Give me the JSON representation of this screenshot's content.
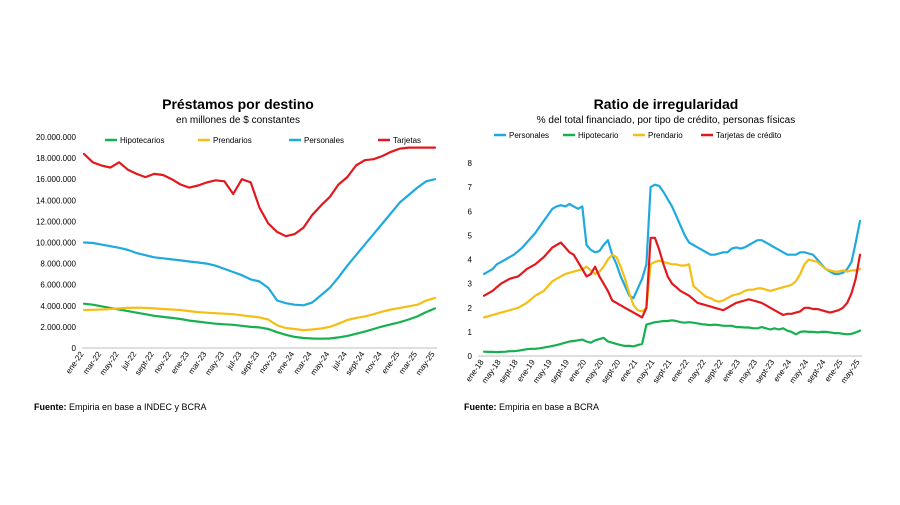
{
  "colors": {
    "green": "#17b050",
    "yellow": "#f5be14",
    "blue": "#1fa9df",
    "red": "#e3181d"
  },
  "chart_data": [
    {
      "type": "line",
      "title": "Préstamos por destino",
      "subtitle": "en millones de $ constantes",
      "source_label": "Fuente:",
      "source_text": " Empiria en base a INDEC y BCRA",
      "ylim": [
        0,
        20000000
      ],
      "ytick_values": [
        0,
        2000000,
        4000000,
        6000000,
        8000000,
        10000000,
        12000000,
        14000000,
        16000000,
        18000000,
        20000000
      ],
      "ytick_labels": [
        "0",
        "2.000.000",
        "4.000.000",
        "6.000.000",
        "8.000.000",
        "10.000.000",
        "12.000.000",
        "14.000.000",
        "16.000.000",
        "18.000.000",
        "20.000.000"
      ],
      "x_count": 41,
      "xtick_indices": [
        0,
        2,
        4,
        6,
        8,
        10,
        12,
        14,
        16,
        18,
        20,
        22,
        24,
        26,
        28,
        30,
        32,
        34,
        36,
        38,
        40
      ],
      "xtick_labels": [
        "ene-22",
        "mar-22",
        "may-22",
        "jul-22",
        "sept-22",
        "nov-22",
        "ene-23",
        "mar-23",
        "may-23",
        "jul-23",
        "sept-23",
        "nov-23",
        "ene-24",
        "mar-24",
        "may-24",
        "jul-24",
        "sept-24",
        "nov-24",
        "ene-25",
        "mar-25",
        "may-25"
      ],
      "series": [
        {
          "name": "Hipotecarios",
          "color": "#17b050",
          "values": [
            4200000,
            4100000,
            3950000,
            3800000,
            3650000,
            3500000,
            3350000,
            3200000,
            3050000,
            2950000,
            2850000,
            2750000,
            2600000,
            2500000,
            2400000,
            2300000,
            2250000,
            2200000,
            2100000,
            2000000,
            1950000,
            1800000,
            1500000,
            1250000,
            1050000,
            950000,
            900000,
            880000,
            900000,
            1000000,
            1150000,
            1350000,
            1550000,
            1800000,
            2050000,
            2250000,
            2450000,
            2700000,
            3000000,
            3400000,
            3750000
          ]
        },
        {
          "name": "Prendarios",
          "color": "#f5be14",
          "values": [
            3600000,
            3620000,
            3650000,
            3700000,
            3750000,
            3800000,
            3820000,
            3800000,
            3750000,
            3700000,
            3650000,
            3600000,
            3500000,
            3400000,
            3350000,
            3300000,
            3250000,
            3200000,
            3100000,
            3000000,
            2900000,
            2700000,
            2150000,
            1900000,
            1800000,
            1700000,
            1750000,
            1850000,
            2000000,
            2300000,
            2650000,
            2850000,
            3000000,
            3200000,
            3450000,
            3650000,
            3800000,
            3950000,
            4100000,
            4500000,
            4750000
          ]
        },
        {
          "name": "Personales",
          "color": "#1fa9df",
          "values": [
            10000000,
            9950000,
            9800000,
            9650000,
            9500000,
            9300000,
            9000000,
            8800000,
            8600000,
            8500000,
            8400000,
            8300000,
            8200000,
            8100000,
            8000000,
            7800000,
            7500000,
            7200000,
            6900000,
            6500000,
            6300000,
            5700000,
            4500000,
            4250000,
            4100000,
            4050000,
            4300000,
            5000000,
            5700000,
            6700000,
            7800000,
            8800000,
            9800000,
            10800000,
            11800000,
            12800000,
            13800000,
            14500000,
            15200000,
            15800000,
            16000000
          ]
        },
        {
          "name": "Tarjetas",
          "color": "#e3181d",
          "values": [
            18400000,
            17600000,
            17300000,
            17100000,
            17600000,
            16900000,
            16500000,
            16200000,
            16500000,
            16400000,
            16000000,
            15500000,
            15200000,
            15400000,
            15700000,
            15900000,
            15800000,
            14600000,
            16000000,
            15700000,
            13300000,
            11800000,
            11000000,
            10600000,
            10800000,
            11400000,
            12600000,
            13500000,
            14300000,
            15500000,
            16200000,
            17300000,
            17800000,
            17900000,
            18200000,
            18600000,
            18900000,
            19000000,
            19000000,
            19000000,
            19000000
          ]
        }
      ]
    },
    {
      "type": "line",
      "title": "Ratio de irregularidad",
      "subtitle": "% del total financiado, por tipo de crédito, personas físicas",
      "source_label": "Fuente:",
      "source_text": " Empiria en base a BCRA",
      "ylim": [
        0,
        8
      ],
      "ytick_values": [
        0,
        1,
        2,
        3,
        4,
        5,
        6,
        7,
        8
      ],
      "ytick_labels": [
        "0",
        "1",
        "2",
        "3",
        "4",
        "5",
        "6",
        "7",
        "8"
      ],
      "x_count": 89,
      "xtick_indices": [
        0,
        4,
        8,
        12,
        16,
        20,
        24,
        28,
        32,
        36,
        40,
        44,
        48,
        52,
        56,
        60,
        64,
        68,
        72,
        76,
        80,
        84,
        88
      ],
      "xtick_labels": [
        "ene-18",
        "may-18",
        "sept-18",
        "ene-19",
        "may-19",
        "sept-19",
        "ene-20",
        "may-20",
        "sept-20",
        "ene-21",
        "may-21",
        "sept-21",
        "ene-22",
        "may-22",
        "sept-22",
        "ene-23",
        "may-23",
        "sept-23",
        "ene-24",
        "may-24",
        "sept-24",
        "ene-25",
        "may-25"
      ],
      "series": [
        {
          "name": "Personales",
          "color": "#1fa9df",
          "values": [
            3.4,
            3.5,
            3.6,
            3.8,
            3.9,
            4.0,
            4.1,
            4.2,
            4.35,
            4.5,
            4.7,
            4.9,
            5.1,
            5.35,
            5.6,
            5.85,
            6.1,
            6.2,
            6.25,
            6.2,
            6.3,
            6.2,
            6.1,
            6.2,
            4.6,
            4.4,
            4.3,
            4.35,
            4.6,
            4.8,
            4.2,
            3.8,
            3.3,
            2.9,
            2.5,
            2.4,
            2.8,
            3.2,
            3.8,
            7.0,
            7.1,
            7.05,
            6.8,
            6.5,
            6.2,
            5.8,
            5.4,
            5.0,
            4.7,
            4.6,
            4.5,
            4.4,
            4.3,
            4.2,
            4.2,
            4.25,
            4.3,
            4.3,
            4.45,
            4.5,
            4.45,
            4.5,
            4.6,
            4.7,
            4.8,
            4.8,
            4.7,
            4.6,
            4.5,
            4.4,
            4.3,
            4.2,
            4.2,
            4.2,
            4.3,
            4.3,
            4.25,
            4.2,
            4.0,
            3.8,
            3.6,
            3.5,
            3.4,
            3.4,
            3.45,
            3.6,
            3.9,
            4.7,
            5.6
          ]
        },
        {
          "name": "Hipotecario",
          "color": "#17b050",
          "values": [
            0.18,
            0.17,
            0.17,
            0.16,
            0.17,
            0.18,
            0.2,
            0.2,
            0.22,
            0.25,
            0.28,
            0.3,
            0.3,
            0.32,
            0.35,
            0.38,
            0.42,
            0.45,
            0.5,
            0.55,
            0.6,
            0.62,
            0.65,
            0.68,
            0.6,
            0.55,
            0.65,
            0.7,
            0.75,
            0.6,
            0.55,
            0.5,
            0.45,
            0.42,
            0.42,
            0.4,
            0.45,
            0.5,
            1.3,
            1.35,
            1.4,
            1.42,
            1.45,
            1.45,
            1.48,
            1.45,
            1.4,
            1.38,
            1.4,
            1.38,
            1.35,
            1.32,
            1.3,
            1.28,
            1.3,
            1.28,
            1.25,
            1.25,
            1.25,
            1.2,
            1.2,
            1.18,
            1.18,
            1.15,
            1.15,
            1.2,
            1.15,
            1.1,
            1.15,
            1.1,
            1.15,
            1.05,
            1.0,
            0.9,
            1.0,
            1.02,
            1.0,
            1.0,
            0.98,
            1.0,
            1.0,
            0.98,
            0.95,
            0.95,
            0.92,
            0.9,
            0.92,
            0.98,
            1.05
          ]
        },
        {
          "name": "Prendario",
          "color": "#f5be14",
          "values": [
            1.6,
            1.65,
            1.7,
            1.75,
            1.8,
            1.85,
            1.9,
            1.95,
            2.0,
            2.1,
            2.2,
            2.35,
            2.5,
            2.6,
            2.7,
            2.9,
            3.1,
            3.2,
            3.3,
            3.4,
            3.45,
            3.5,
            3.55,
            3.6,
            3.7,
            3.55,
            3.4,
            3.5,
            3.7,
            4.0,
            4.2,
            4.1,
            3.7,
            3.2,
            2.6,
            2.1,
            1.9,
            1.85,
            2.0,
            3.8,
            3.9,
            3.95,
            3.9,
            3.85,
            3.8,
            3.8,
            3.75,
            3.75,
            3.8,
            2.9,
            2.75,
            2.6,
            2.45,
            2.4,
            2.3,
            2.25,
            2.3,
            2.4,
            2.5,
            2.55,
            2.6,
            2.7,
            2.75,
            2.75,
            2.8,
            2.8,
            2.75,
            2.7,
            2.75,
            2.8,
            2.85,
            2.9,
            2.95,
            3.1,
            3.4,
            3.8,
            4.0,
            3.95,
            3.9,
            3.75,
            3.6,
            3.55,
            3.5,
            3.5,
            3.55,
            3.5,
            3.55,
            3.55,
            3.6
          ]
        },
        {
          "name": "Tarjetas de crédito",
          "color": "#e3181d",
          "values": [
            2.5,
            2.6,
            2.7,
            2.85,
            3.0,
            3.1,
            3.2,
            3.25,
            3.3,
            3.45,
            3.6,
            3.7,
            3.8,
            3.95,
            4.1,
            4.3,
            4.5,
            4.6,
            4.7,
            4.5,
            4.3,
            4.2,
            3.9,
            3.6,
            3.3,
            3.4,
            3.7,
            3.3,
            3.0,
            2.7,
            2.3,
            2.2,
            2.1,
            2.0,
            1.9,
            1.8,
            1.7,
            1.6,
            2.0,
            4.9,
            4.9,
            4.4,
            3.8,
            3.3,
            3.0,
            2.85,
            2.7,
            2.6,
            2.5,
            2.35,
            2.2,
            2.15,
            2.1,
            2.05,
            2.0,
            1.95,
            1.9,
            2.0,
            2.1,
            2.2,
            2.25,
            2.3,
            2.35,
            2.3,
            2.25,
            2.2,
            2.1,
            2.0,
            1.9,
            1.8,
            1.7,
            1.75,
            1.75,
            1.8,
            1.85,
            2.0,
            2.0,
            1.95,
            1.95,
            1.9,
            1.85,
            1.8,
            1.85,
            1.9,
            2.0,
            2.2,
            2.6,
            3.2,
            4.2
          ]
        }
      ]
    }
  ]
}
